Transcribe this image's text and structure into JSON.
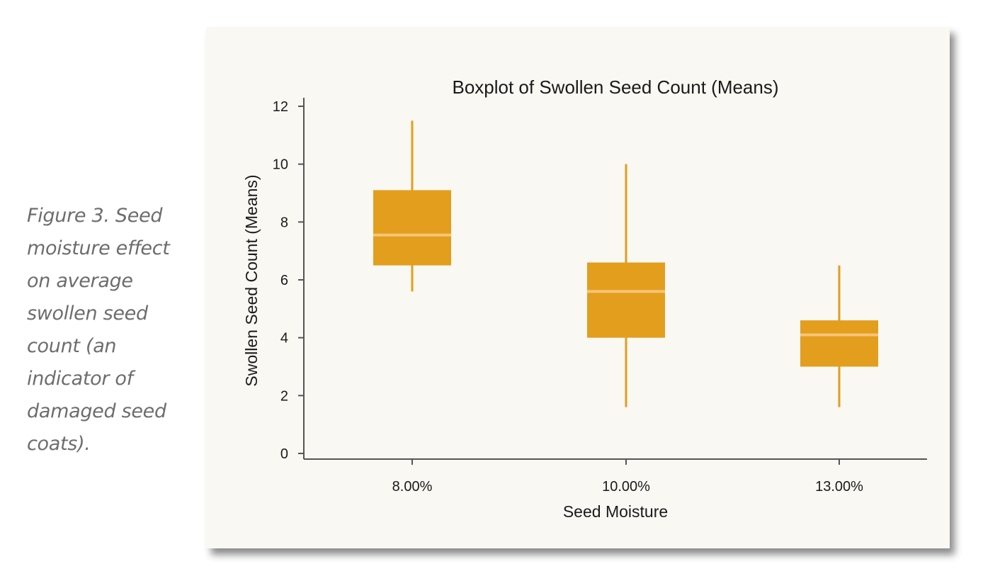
{
  "caption": "Figure 3. Seed moisture effect on average swollen seed count (an indicator of damaged seed coats).",
  "colors": {
    "box_fill": "#e39e1e",
    "whisker": "#e39e1e",
    "median": "#f7c577",
    "axis": "#555555",
    "panel_bg": "#f9f8f3"
  },
  "chart_data": {
    "type": "boxplot",
    "title": "Boxplot of Swollen Seed Count (Means)",
    "xlabel": "Seed Moisture",
    "ylabel": "Swollen Seed Count (Means)",
    "ylim": [
      0,
      12
    ],
    "yticks": [
      0,
      2,
      4,
      6,
      8,
      10,
      12
    ],
    "categories": [
      "8.00%",
      "10.00%",
      "13.00%"
    ],
    "boxes": [
      {
        "category": "8.00%",
        "min": 5.6,
        "q1": 6.5,
        "median": 7.55,
        "q3": 9.1,
        "max": 11.5
      },
      {
        "category": "10.00%",
        "min": 1.6,
        "q1": 4.0,
        "median": 5.6,
        "q3": 6.6,
        "max": 10.0
      },
      {
        "category": "13.00%",
        "min": 1.6,
        "q1": 3.0,
        "median": 4.1,
        "q3": 4.6,
        "max": 6.5
      }
    ],
    "grid": false,
    "legend": "none"
  }
}
